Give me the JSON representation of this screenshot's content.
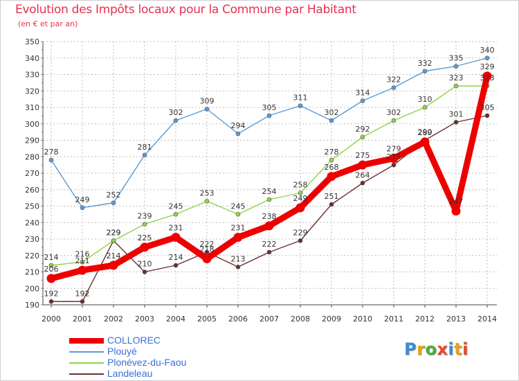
{
  "title": "Evolution des Impôts locaux pour la Commune par Habitant",
  "subtitle": "(en € et par an)",
  "logo": {
    "text": "Proxiti",
    "colors": [
      "#3a8fd6",
      "#e8a317",
      "#4cae3a",
      "#e84a2a",
      "#3a8fd6",
      "#e8a317",
      "#e84a2a"
    ]
  },
  "chart_data": {
    "type": "line",
    "title": "Evolution des Impôts locaux pour la Commune par Habitant",
    "subtitle": "(en € et par an)",
    "xlabel": "",
    "ylabel": "",
    "ylim": [
      190,
      350
    ],
    "yticks": [
      190,
      200,
      210,
      220,
      230,
      240,
      250,
      260,
      270,
      280,
      290,
      300,
      310,
      320,
      330,
      340,
      350
    ],
    "grid": true,
    "legend_position": "bottom-left",
    "x": [
      "2000",
      "2001",
      "2002",
      "2003",
      "2004",
      "2005",
      "2006",
      "2007",
      "2008",
      "2009",
      "2010",
      "2011",
      "2012",
      "2013",
      "2014"
    ],
    "series": [
      {
        "name": "Landeleau",
        "color": "#6b2f2f",
        "emphasis": false,
        "values": [
          192,
          192,
          229,
          210,
          214,
          222,
          213,
          222,
          229,
          251,
          264,
          275,
          290,
          301,
          305
        ],
        "labels": [
          "192",
          "192",
          "229",
          "210",
          "214",
          "222",
          "213",
          "222",
          "229",
          "251",
          "264",
          "275",
          "290",
          "301",
          "305"
        ]
      },
      {
        "name": "Plonévez-du-Faou",
        "color": "#8fd24a",
        "emphasis": false,
        "values": [
          214,
          216,
          229,
          239,
          245,
          253,
          245,
          254,
          258,
          278,
          292,
          302,
          310,
          323,
          323
        ],
        "labels": [
          "214",
          "216",
          "229",
          "239",
          "245",
          "253",
          "245",
          "254",
          "258",
          "278",
          "292",
          "302",
          "310",
          "323",
          "323"
        ]
      },
      {
        "name": "Plouyé",
        "color": "#5b9bd5",
        "emphasis": false,
        "values": [
          278,
          249,
          252,
          281,
          302,
          309,
          294,
          305,
          311,
          302,
          314,
          322,
          332,
          335,
          340
        ],
        "labels": [
          "278",
          "249",
          "252",
          "281",
          "302",
          "309",
          "294",
          "305",
          "311",
          "302",
          "314",
          "322",
          "332",
          "335",
          "340"
        ]
      },
      {
        "name": "COLLOREC",
        "color": "#ee0000",
        "emphasis": true,
        "values": [
          206,
          211,
          214,
          225,
          231,
          218,
          231,
          238,
          249,
          268,
          275,
          279,
          289,
          247,
          329
        ],
        "labels": [
          "206",
          "211",
          "214",
          "225",
          "231",
          "218",
          "231",
          "238",
          "249",
          "268",
          "275",
          "279",
          "289",
          "247",
          "329"
        ]
      }
    ],
    "legend": [
      {
        "name": "COLLOREC",
        "color": "#ee0000",
        "label_color": "#3a6fd8"
      },
      {
        "name": "Plouyé",
        "color": "#5b9bd5",
        "label_color": "#3a6fd8"
      },
      {
        "name": "Plonévez-du-Faou",
        "color": "#8fd24a",
        "label_color": "#3a6fd8"
      },
      {
        "name": "Landeleau",
        "color": "#6b2f2f",
        "label_color": "#3a6fd8"
      }
    ]
  }
}
